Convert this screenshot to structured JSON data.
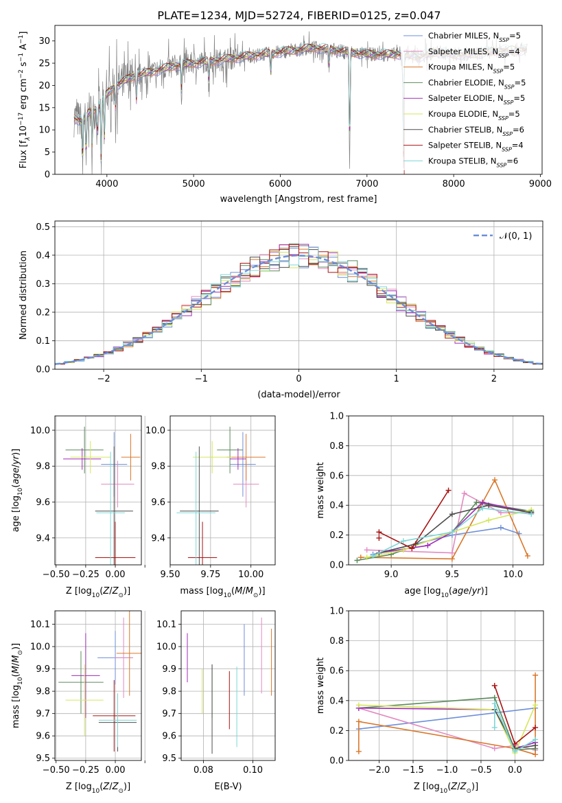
{
  "title": "PLATE=1234, MJD=52724, FIBERID=0125, z=0.047",
  "colors": {
    "Chabrier MILES": "#6c8ed8",
    "Salpeter MILES": "#e38ac0",
    "Kroupa MILES": "#d9772a",
    "Chabrier ELODIE": "#5b8a5b",
    "Salpeter ELODIE": "#a12ab8",
    "Kroupa ELODIE": "#d4e65a",
    "Chabrier STELIB": "#4d4d4d",
    "Salpeter STELIB": "#a81212",
    "Kroupa STELIB": "#7dd6d6"
  },
  "chart_data": [
    {
      "id": "spectrum",
      "type": "line",
      "xlabel": "wavelength [Angstrom, rest frame]",
      "ylabel_parts": [
        "Flux [f",
        "λ",
        "10",
        "−17",
        " erg cm",
        "−2",
        " s",
        "−1",
        " A",
        "−1",
        "]"
      ],
      "xlim": [
        3400,
        9020
      ],
      "ylim": [
        0,
        33.5
      ],
      "xticks": [
        4000,
        5000,
        6000,
        7000,
        8000,
        9000
      ],
      "yticks": [
        0,
        5,
        10,
        15,
        20,
        25,
        30
      ],
      "data_color": "#808080",
      "continuum": [
        [
          3600,
          13
        ],
        [
          3700,
          12
        ],
        [
          3800,
          14
        ],
        [
          3900,
          15
        ],
        [
          4000,
          18
        ],
        [
          4100,
          20
        ],
        [
          4200,
          21
        ],
        [
          4300,
          22
        ],
        [
          4400,
          22.5
        ],
        [
          4600,
          23.5
        ],
        [
          4800,
          24.5
        ],
        [
          5000,
          25
        ],
        [
          5200,
          25.5
        ],
        [
          5400,
          26
        ],
        [
          5600,
          26.5
        ],
        [
          5800,
          27
        ],
        [
          6000,
          27.5
        ],
        [
          6200,
          28
        ],
        [
          6400,
          28.5
        ],
        [
          6600,
          28
        ],
        [
          6800,
          27.5
        ],
        [
          7000,
          27
        ],
        [
          7200,
          27
        ],
        [
          7400,
          27
        ],
        [
          7600,
          26.5
        ],
        [
          7800,
          27.5
        ],
        [
          8000,
          27
        ],
        [
          8200,
          27
        ],
        [
          8400,
          27.5
        ],
        [
          8600,
          28
        ],
        [
          8800,
          28
        ]
      ],
      "absorption_lines": [
        [
          3720,
          0
        ],
        [
          3760,
          2
        ],
        [
          3830,
          5
        ],
        [
          3889,
          8
        ],
        [
          3934,
          0
        ],
        [
          3970,
          6
        ],
        [
          4102,
          14
        ],
        [
          4340,
          16
        ],
        [
          4861,
          18
        ],
        [
          5175,
          20
        ],
        [
          5890,
          22
        ],
        [
          6563,
          24
        ],
        [
          6800,
          0
        ],
        [
          7420,
          0
        ]
      ],
      "legend": [
        {
          "label": "Chabrier MILES, N",
          "sub": "SSP",
          "n": "=5"
        },
        {
          "label": "Salpeter MILES, N",
          "sub": "SSP",
          "n": "=4"
        },
        {
          "label": "Kroupa MILES, N",
          "sub": "SSP",
          "n": "=5"
        },
        {
          "label": "Chabrier ELODIE, N",
          "sub": "SSP",
          "n": "=5"
        },
        {
          "label": "Salpeter ELODIE, N",
          "sub": "SSP",
          "n": "=5"
        },
        {
          "label": "Kroupa ELODIE, N",
          "sub": "SSP",
          "n": "=5"
        },
        {
          "label": "Chabrier STELIB, N",
          "sub": "SSP",
          "n": "=6"
        },
        {
          "label": "Salpeter STELIB, N",
          "sub": "SSP",
          "n": "=4"
        },
        {
          "label": "Kroupa STELIB, N",
          "sub": "SSP",
          "n": "=6"
        }
      ],
      "legend_placement": "right"
    },
    {
      "id": "residuals",
      "type": "histogram",
      "xlabel": "(data-model)/error",
      "ylabel": "Normed distribution",
      "xlim": [
        -2.5,
        2.5
      ],
      "ylim": [
        0,
        0.52
      ],
      "xticks": [
        -2,
        -1,
        0,
        1,
        2
      ],
      "yticks": [
        0.0,
        0.1,
        0.2,
        0.3,
        0.4,
        0.5
      ],
      "bin_width": 0.1,
      "legend": "𝒩(0, 1)",
      "legend_placement": "top-right",
      "grid": true
    },
    {
      "id": "age-vs-Z",
      "type": "errorbar",
      "xlabel": "Z [log10(Z/Z⊙)]",
      "ylabel": "age  [log10(age/yr)]",
      "xlim": [
        -0.51,
        0.22
      ],
      "ylim": [
        9.25,
        10.08
      ],
      "xticks": [
        -0.5,
        -0.25,
        0.0,
        0.25
      ],
      "xticklabels": [
        "−0.50",
        "−0.25",
        "0.00",
        ""
      ],
      "yticks": [
        9.4,
        9.6,
        9.8,
        10.0
      ],
      "grid": true,
      "points": [
        {
          "model": "Chabrier MILES",
          "x": -0.01,
          "xerr": 0.11,
          "y": 9.81,
          "yerr": 0.18
        },
        {
          "model": "Salpeter MILES",
          "x": 0.02,
          "xerr": 0.14,
          "y": 9.7,
          "yerr": 0.13
        },
        {
          "model": "Kroupa MILES",
          "x": 0.13,
          "xerr": 0.08,
          "y": 9.85,
          "yerr": 0.13
        },
        {
          "model": "Chabrier ELODIE",
          "x": -0.26,
          "xerr": 0.16,
          "y": 9.89,
          "yerr": 0.13
        },
        {
          "model": "Salpeter ELODIE",
          "x": -0.28,
          "xerr": 0.16,
          "y": 9.84,
          "yerr": 0.06
        },
        {
          "model": "Kroupa ELODIE",
          "x": -0.21,
          "xerr": 0.17,
          "y": 9.85,
          "yerr": 0.09
        },
        {
          "model": "Chabrier STELIB",
          "x": -0.01,
          "xerr": 0.16,
          "y": 9.55,
          "yerr": 0.36
        },
        {
          "model": "Salpeter STELIB",
          "x": 0.0,
          "xerr": 0.17,
          "y": 9.29,
          "yerr": 0.2
        },
        {
          "model": "Kroupa STELIB",
          "x": -0.04,
          "xerr": 0.12,
          "y": 9.54,
          "yerr": 0.34
        }
      ]
    },
    {
      "id": "age-vs-mass",
      "type": "errorbar",
      "xlabel": "mass [log10(M/M⊙)]",
      "xlim": [
        9.5,
        10.15
      ],
      "ylim": [
        9.25,
        10.08
      ],
      "xticks": [
        9.5,
        9.75,
        10.0
      ],
      "xticklabels": [
        "9.50",
        "9.75",
        "10.00"
      ],
      "yticks": [
        9.4,
        9.6,
        9.8,
        10.0
      ],
      "grid": true,
      "points": [
        {
          "model": "Chabrier MILES",
          "x": 9.95,
          "xerr": 0.08,
          "y": 9.81,
          "yerr": 0.18
        },
        {
          "model": "Salpeter MILES",
          "x": 9.97,
          "xerr": 0.08,
          "y": 9.7,
          "yerr": 0.13
        },
        {
          "model": "Kroupa MILES",
          "x": 9.97,
          "xerr": 0.12,
          "y": 9.85,
          "yerr": 0.13
        },
        {
          "model": "Chabrier ELODIE",
          "x": 9.87,
          "xerr": 0.08,
          "y": 9.89,
          "yerr": 0.13
        },
        {
          "model": "Salpeter ELODIE",
          "x": 9.92,
          "xerr": 0.05,
          "y": 9.84,
          "yerr": 0.06
        },
        {
          "model": "Kroupa ELODIE",
          "x": 9.76,
          "xerr": 0.12,
          "y": 9.85,
          "yerr": 0.09
        },
        {
          "model": "Chabrier STELIB",
          "x": 9.68,
          "xerr": 0.12,
          "y": 9.55,
          "yerr": 0.36
        },
        {
          "model": "Salpeter STELIB",
          "x": 9.7,
          "xerr": 0.09,
          "y": 9.29,
          "yerr": 0.2
        },
        {
          "model": "Kroupa STELIB",
          "x": 9.66,
          "xerr": 0.12,
          "y": 9.54,
          "yerr": 0.34
        }
      ]
    },
    {
      "id": "weight-vs-age",
      "type": "line",
      "xlabel": "age  [log10(age/yr)]",
      "ylabel": "mass weight",
      "xlim": [
        8.65,
        10.25
      ],
      "ylim": [
        0,
        1.0
      ],
      "xticks": [
        9.0,
        9.5,
        10.0
      ],
      "yticks": [
        0.0,
        0.2,
        0.4,
        0.6,
        0.8,
        1.0
      ],
      "grid": true,
      "series": [
        {
          "model": "Chabrier MILES",
          "x": [
            8.85,
            9.5,
            9.9,
            10.05
          ],
          "y": [
            0.07,
            0.2,
            0.25,
            0.21
          ]
        },
        {
          "model": "Salpeter MILES",
          "x": [
            8.8,
            9.5,
            9.6,
            9.9,
            10.15
          ],
          "y": [
            0.1,
            0.08,
            0.48,
            0.35,
            0.35
          ]
        },
        {
          "model": "Kroupa MILES",
          "x": [
            8.75,
            9.5,
            9.85,
            10.12
          ],
          "y": [
            0.05,
            0.04,
            0.57,
            0.06
          ]
        },
        {
          "model": "Chabrier ELODIE",
          "x": [
            8.72,
            9.0,
            9.5,
            9.7,
            10.15
          ],
          "y": [
            0.03,
            0.07,
            0.22,
            0.42,
            0.36
          ]
        },
        {
          "model": "Salpeter ELODIE",
          "x": [
            8.9,
            9.3,
            9.5,
            9.75,
            10.15
          ],
          "y": [
            0.08,
            0.13,
            0.22,
            0.42,
            0.35
          ]
        },
        {
          "model": "Kroupa ELODIE",
          "x": [
            8.8,
            9.1,
            9.5,
            9.8,
            10.15
          ],
          "y": [
            0.05,
            0.1,
            0.22,
            0.3,
            0.37
          ]
        },
        {
          "model": "Chabrier STELIB",
          "x": [
            8.9,
            9.2,
            9.5,
            9.8,
            10.15
          ],
          "y": [
            0.08,
            0.14,
            0.34,
            0.4,
            0.35
          ]
        },
        {
          "model": "Salpeter STELIB",
          "x": [
            8.9,
            9.17,
            9.47
          ],
          "y": [
            0.22,
            0.11,
            0.5
          ]
        },
        {
          "model": "Kroupa STELIB",
          "x": [
            8.85,
            9.1,
            9.5,
            9.75,
            10.15
          ],
          "y": [
            0.06,
            0.16,
            0.22,
            0.38,
            0.34
          ]
        }
      ],
      "extra_markers": [
        {
          "model": "Salpeter STELIB",
          "x": 8.9,
          "y": 0.18
        }
      ]
    },
    {
      "id": "mass-vs-Z",
      "type": "errorbar",
      "xlabel": "Z [log10(Z/Z⊙)]",
      "ylabel": "mass [log10(M/M⊙)]",
      "xlim": [
        -0.51,
        0.22
      ],
      "ylim": [
        9.49,
        10.16
      ],
      "xticks": [
        -0.5,
        -0.25,
        0.0,
        0.25
      ],
      "xticklabels": [
        "−0.50",
        "−0.25",
        "0.00",
        ""
      ],
      "yticks": [
        9.5,
        9.6,
        9.7,
        9.8,
        9.9,
        10.0,
        10.1
      ],
      "grid": true,
      "points": [
        {
          "model": "Chabrier MILES",
          "x": 0.0,
          "xerr": 0.15,
          "y": 9.95,
          "yerr": 0.12
        },
        {
          "model": "Salpeter MILES",
          "x": 0.07,
          "xerr": 0.08,
          "y": 9.95,
          "yerr": 0.18
        },
        {
          "model": "Kroupa MILES",
          "x": 0.12,
          "xerr": 0.11,
          "y": 9.97,
          "yerr": 0.19
        },
        {
          "model": "Chabrier ELODIE",
          "x": -0.29,
          "xerr": 0.19,
          "y": 9.84,
          "yerr": 0.14
        },
        {
          "model": "Salpeter ELODIE",
          "x": -0.25,
          "xerr": 0.12,
          "y": 9.87,
          "yerr": 0.19
        },
        {
          "model": "Kroupa ELODIE",
          "x": -0.26,
          "xerr": 0.16,
          "y": 9.76,
          "yerr": 0.16
        },
        {
          "model": "Chabrier STELIB",
          "x": 0.02,
          "xerr": 0.16,
          "y": 9.66,
          "yerr": 0.13
        },
        {
          "model": "Salpeter STELIB",
          "x": -0.01,
          "xerr": 0.18,
          "y": 9.69,
          "yerr": 0.16
        },
        {
          "model": "Kroupa STELIB",
          "x": 0.02,
          "xerr": 0.16,
          "y": 9.67,
          "yerr": 0.12
        }
      ]
    },
    {
      "id": "mass-vs-EBV",
      "type": "errorbar",
      "xlabel": "E(B-V)",
      "xlim": [
        0.071,
        0.109
      ],
      "ylim": [
        9.49,
        10.16
      ],
      "xticks": [
        0.08,
        0.1
      ],
      "xticklabels": [
        "0.08",
        "0.10"
      ],
      "yticks": [
        9.5,
        9.6,
        9.7,
        9.8,
        9.9,
        10.0,
        10.1
      ],
      "grid": true,
      "points": [
        {
          "model": "Chabrier MILES",
          "x": 0.0965,
          "xerr": 0,
          "y": 9.94,
          "yerr": 0.16
        },
        {
          "model": "Salpeter MILES",
          "x": 0.1035,
          "xerr": 0,
          "y": 9.96,
          "yerr": 0.17
        },
        {
          "model": "Kroupa MILES",
          "x": 0.1075,
          "xerr": 0,
          "y": 9.93,
          "yerr": 0.15
        },
        {
          "model": "Chabrier ELODIE",
          "x": 0.0835,
          "xerr": 0,
          "y": 9.8,
          "yerr": 0.12
        },
        {
          "model": "Salpeter ELODIE",
          "x": 0.0735,
          "xerr": 0,
          "y": 9.95,
          "yerr": 0.11
        },
        {
          "model": "Kroupa ELODIE",
          "x": 0.0795,
          "xerr": 0,
          "y": 9.8,
          "yerr": 0.1
        },
        {
          "model": "Chabrier STELIB",
          "x": 0.0835,
          "xerr": 0,
          "y": 9.72,
          "yerr": 0.2
        },
        {
          "model": "Salpeter STELIB",
          "x": 0.0905,
          "xerr": 0,
          "y": 9.76,
          "yerr": 0.13
        },
        {
          "model": "Kroupa STELIB",
          "x": 0.0935,
          "xerr": 0,
          "y": 9.73,
          "yerr": 0.18
        }
      ]
    },
    {
      "id": "weight-vs-Z",
      "type": "line",
      "xlabel": "Z [log10(Z/Z⊙)]",
      "ylabel": "mass weight",
      "xlim": [
        -2.45,
        0.42
      ],
      "ylim": [
        0,
        1.0
      ],
      "xticks": [
        -2.0,
        -1.5,
        -1.0,
        -0.5,
        0.0
      ],
      "xticklabels": [
        "−2.0",
        "−1.5",
        "−1.0",
        "−0.5",
        "0.0"
      ],
      "yticks": [
        0.0,
        0.2,
        0.4,
        0.6,
        0.8,
        1.0
      ],
      "grid": true,
      "series": [
        {
          "model": "Chabrier MILES",
          "x": [
            -2.3,
            0.3
          ],
          "y": [
            0.21,
            0.35
          ]
        },
        {
          "model": "Salpeter MILES",
          "x": [
            -2.3,
            -0.3,
            0.0,
            0.3
          ],
          "y": [
            0.35,
            0.08,
            0.1,
            0.07
          ]
        },
        {
          "model": "Kroupa MILES",
          "x": [
            -2.3,
            -2.3,
            0.0,
            0.3,
            0.3
          ],
          "y": [
            0.06,
            0.26,
            0.08,
            0.04,
            0.57
          ]
        },
        {
          "model": "Chabrier ELODIE",
          "x": [
            -2.3,
            -0.3,
            0.0,
            0.3
          ],
          "y": [
            0.35,
            0.42,
            0.07,
            0.08
          ]
        },
        {
          "model": "Salpeter ELODIE",
          "x": [
            -2.3,
            -0.3,
            0.0,
            0.3
          ],
          "y": [
            0.35,
            0.34,
            0.08,
            0.12
          ]
        },
        {
          "model": "Kroupa ELODIE",
          "x": [
            -2.3,
            -0.3,
            0.0,
            0.3
          ],
          "y": [
            0.37,
            0.34,
            0.05,
            0.37
          ]
        },
        {
          "model": "Chabrier STELIB",
          "x": [
            -0.3,
            0.0,
            0.3
          ],
          "y": [
            0.34,
            0.08,
            0.1
          ]
        },
        {
          "model": "Salpeter STELIB",
          "x": [
            -0.3,
            0.0,
            0.3
          ],
          "y": [
            0.5,
            0.11,
            0.22
          ]
        },
        {
          "model": "Kroupa STELIB",
          "x": [
            -0.3,
            -0.3,
            0.0,
            0.3
          ],
          "y": [
            0.22,
            0.38,
            0.06,
            0.14
          ]
        }
      ]
    }
  ]
}
